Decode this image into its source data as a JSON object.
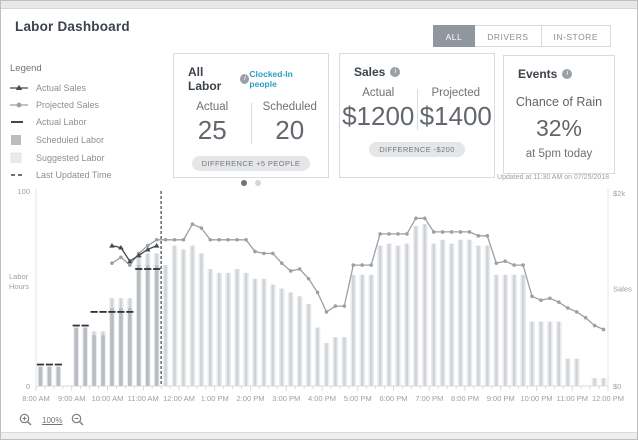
{
  "window": {
    "title": "Labor Dashboard"
  },
  "tabs": {
    "all": "ALL",
    "drivers": "DRIVERS",
    "in_store": "IN-STORE"
  },
  "legend": {
    "title": "Legend",
    "items": [
      {
        "label": "Actual Sales",
        "icon": "line-triangle-marker-icon"
      },
      {
        "label": "Projected Sales",
        "icon": "line-circle-marker-icon"
      },
      {
        "label": "Actual Labor",
        "icon": "solid-line-icon"
      },
      {
        "label": "Scheduled Labor",
        "icon": "dark-square-swatch-icon"
      },
      {
        "label": "Suggested Labor",
        "icon": "light-square-swatch-icon"
      },
      {
        "label": "Last Updated Time",
        "icon": "dashed-line-icon"
      }
    ]
  },
  "cards": {
    "all_labor": {
      "title": "All Labor",
      "link": "Clocked-In people",
      "col1_label": "Actual",
      "col1_value": "25",
      "col2_label": "Scheduled",
      "col2_value": "20",
      "badge": "DIFFERENCE +5 PEOPLE"
    },
    "sales": {
      "title": "Sales",
      "col1_label": "Actual",
      "col1_value": "$1200",
      "col2_label": "Projected",
      "col2_value": "$1400",
      "badge": "DIFFERENCE -$200"
    },
    "events": {
      "title": "Events",
      "line1": "Chance of Rain",
      "value": "32%",
      "line2": "at 5pm today"
    }
  },
  "updated_text": "Updated at 11:30 AM on 07/25/2018",
  "zoom_controls": {
    "level": "100%"
  },
  "colors": {
    "accent_link": "#2b9fc4",
    "tab_active_bg": "#8f969d",
    "suggested_bar": "#e9ebed",
    "suggested_bar_inner": "#cfd3d7",
    "scheduled_bar": "#b8bdc2",
    "actual_labor": "#2e3338",
    "projected_sales_line": "#9aa0a6",
    "actual_sales_line": "#434a52",
    "last_updated_line": "#565c63"
  },
  "chart_data": {
    "type": "bar",
    "subtype": "bar-line-combo",
    "interval_minutes": 15,
    "x_hour_labels": [
      "8:00 AM",
      "9:00 AM",
      "10:00 AM",
      "11:00 AM",
      "12:00 AM",
      "1:00 PM",
      "2:00 PM",
      "3:00 PM",
      "4:00 PM",
      "5:00 PM",
      "6:00 PM",
      "7:00 PM",
      "8:00 PM",
      "9:00 PM",
      "10:00 PM",
      "11:00 PM",
      "12:00 PM"
    ],
    "y_left": {
      "title": "Labor Hours",
      "min": 0,
      "max": 100,
      "tick_top": "100",
      "tick_bottom": "0"
    },
    "y_right": {
      "title": "Sales",
      "tick_top": "$2k",
      "tick_bottom": "$0"
    },
    "last_updated_marker_slot": 14,
    "legend_position": "left",
    "grid": false,
    "series": [
      {
        "name": "Suggested Labor",
        "type": "bar",
        "color": "#e9ebed",
        "inner_color": "#cfd3d7",
        "values": [
          10,
          10,
          10,
          null,
          30,
          30,
          28,
          28,
          45,
          45,
          45,
          68,
          68,
          68,
          62,
          72,
          70,
          72,
          68,
          60,
          58,
          58,
          60,
          58,
          55,
          55,
          52,
          50,
          48,
          46,
          42,
          30,
          22,
          25,
          25,
          57,
          57,
          57,
          72,
          73,
          72,
          73,
          82,
          83,
          73,
          75,
          73,
          75,
          75,
          72,
          72,
          57,
          57,
          57,
          57,
          33,
          33,
          33,
          33,
          14,
          14,
          null,
          4,
          4
        ]
      },
      {
        "name": "Scheduled Labor",
        "type": "bar",
        "color": "#b8bdc2",
        "values": [
          10,
          10,
          10,
          null,
          30,
          30,
          26,
          26,
          40,
          40,
          40,
          62,
          62,
          62,
          null,
          null,
          null,
          null,
          null,
          null,
          null,
          null,
          null,
          null,
          null,
          null,
          null,
          null,
          null,
          null,
          null,
          null,
          null,
          null,
          null,
          null,
          null,
          null,
          null,
          null,
          null,
          null,
          null,
          null,
          null,
          null,
          null,
          null,
          null,
          null,
          null,
          null,
          null,
          null,
          null,
          null,
          null,
          null,
          null,
          null,
          null,
          null,
          null,
          null
        ]
      },
      {
        "name": "Actual Labor",
        "type": "dash",
        "color": "#2e3338",
        "values": [
          11,
          11,
          11,
          null,
          31,
          31,
          38,
          38,
          38,
          38,
          38,
          60,
          60,
          60,
          null,
          null,
          null,
          null,
          null,
          null,
          null,
          null,
          null,
          null,
          null,
          null,
          null,
          null,
          null,
          null,
          null,
          null,
          null,
          null,
          null,
          null,
          null,
          null,
          null,
          null,
          null,
          null,
          null,
          null,
          null,
          null,
          null,
          null,
          null,
          null,
          null,
          null,
          null,
          null,
          null,
          null,
          null,
          null,
          null,
          null,
          null,
          null,
          null,
          null
        ]
      },
      {
        "name": "Actual Sales",
        "type": "line",
        "marker": "triangle",
        "color": "#434a52",
        "values": [
          null,
          null,
          null,
          null,
          null,
          null,
          null,
          null,
          72,
          71,
          64,
          67,
          70,
          72,
          null,
          null,
          null,
          null,
          null,
          null,
          null,
          null,
          null,
          null,
          null,
          null,
          null,
          null,
          null,
          null,
          null,
          null,
          null,
          null,
          null,
          null,
          null,
          null,
          null,
          null,
          null,
          null,
          null,
          null,
          null,
          null,
          null,
          null,
          null,
          null,
          null,
          null,
          null,
          null,
          null,
          null,
          null,
          null,
          null,
          null,
          null,
          null,
          null,
          null
        ]
      },
      {
        "name": "Projected Sales",
        "type": "line",
        "marker": "circle",
        "color": "#9aa0a6",
        "values": [
          null,
          null,
          null,
          null,
          null,
          null,
          null,
          null,
          63,
          66,
          62,
          68,
          72,
          75,
          75,
          75,
          75,
          83,
          81,
          75,
          75,
          75,
          75,
          75,
          69,
          68,
          68,
          63,
          59,
          60,
          55,
          48,
          38,
          41,
          41,
          62,
          62,
          62,
          78,
          78,
          78,
          78,
          86,
          86,
          79,
          79,
          79,
          79,
          79,
          77,
          77,
          63,
          64,
          62,
          62,
          46,
          44,
          45,
          43,
          40,
          38,
          35,
          31,
          29
        ]
      }
    ]
  }
}
